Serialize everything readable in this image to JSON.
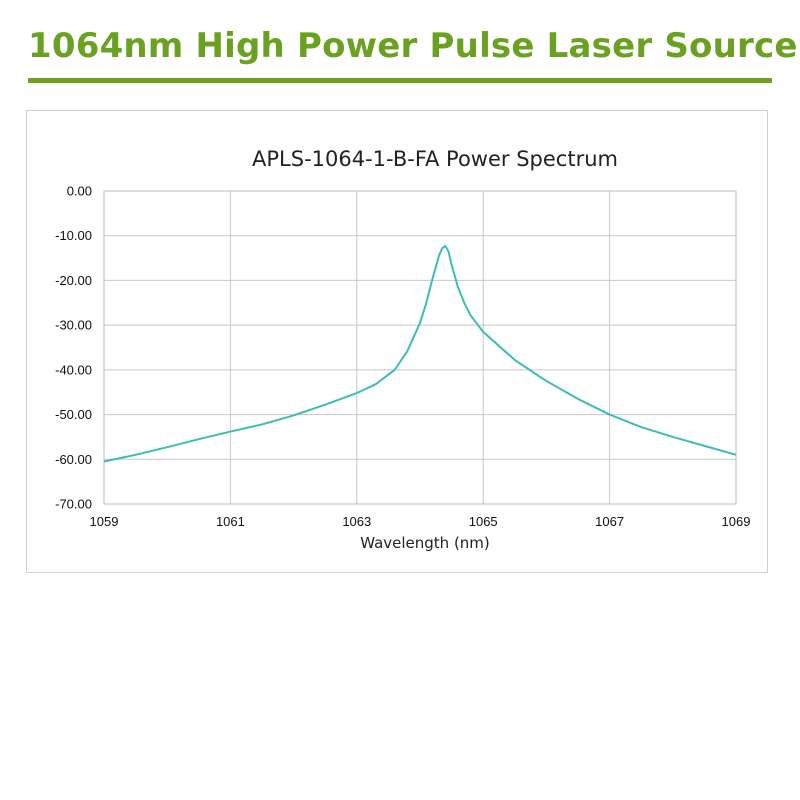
{
  "page": {
    "heading": "1064nm High Power Pulse Laser Source",
    "accent_color": "#6aa121"
  },
  "chart_data": {
    "type": "line",
    "title": "APLS-1064-1-B-FA Power Spectrum",
    "xlabel": "Wavelength (nm)",
    "ylabel": "",
    "xlim": [
      1059,
      1069
    ],
    "ylim": [
      -70,
      0
    ],
    "x_ticks": [
      1059,
      1061,
      1063,
      1065,
      1067,
      1069
    ],
    "x_tick_labels": [
      "1059",
      "1061",
      "1063",
      "1065",
      "1067",
      "1069"
    ],
    "y_ticks": [
      0,
      -10,
      -20,
      -30,
      -40,
      -50,
      -60,
      -70
    ],
    "y_tick_labels": [
      "0.00",
      "-10.00",
      "-20.00",
      "-30.00",
      "-40.00",
      "-50.00",
      "-60.00",
      "-70.00"
    ],
    "grid": true,
    "legend": "none",
    "series": [
      {
        "color": "#3dbdb5",
        "x": [
          1059.0,
          1059.5,
          1060.0,
          1060.5,
          1061.0,
          1061.5,
          1062.0,
          1062.5,
          1063.0,
          1063.3,
          1063.6,
          1063.8,
          1064.0,
          1064.1,
          1064.2,
          1064.3,
          1064.35,
          1064.4,
          1064.45,
          1064.5,
          1064.6,
          1064.7,
          1064.8,
          1065.0,
          1065.5,
          1066.0,
          1066.5,
          1067.0,
          1067.5,
          1068.0,
          1068.5,
          1069.0
        ],
        "values": [
          -60.5,
          -59.0,
          -57.3,
          -55.5,
          -53.8,
          -52.2,
          -50.2,
          -47.8,
          -45.2,
          -43.2,
          -40.0,
          -35.8,
          -29.5,
          -25.0,
          -19.5,
          -14.5,
          -12.8,
          -12.3,
          -13.5,
          -16.5,
          -21.5,
          -25.0,
          -27.8,
          -31.5,
          -37.8,
          -42.5,
          -46.5,
          -50.0,
          -52.8,
          -55.0,
          -57.0,
          -59.0
        ]
      }
    ]
  }
}
